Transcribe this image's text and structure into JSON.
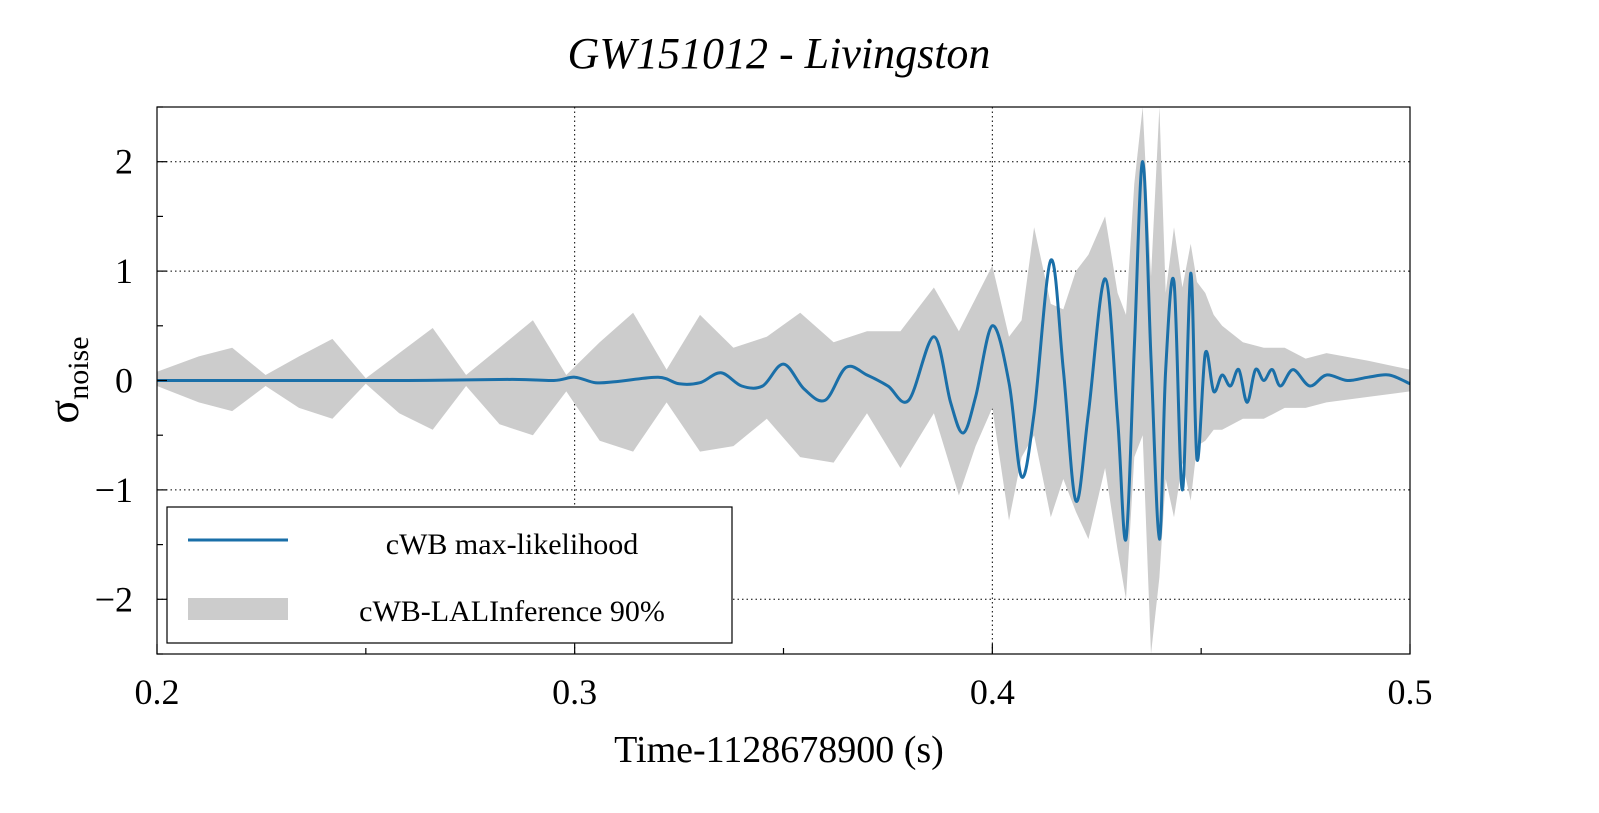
{
  "chart_data": {
    "type": "line",
    "title": "GW151012 - Livingston",
    "xlabel": "Time-1128678900 (s)",
    "ylabel_main": "σ",
    "ylabel_sub": "noise",
    "xlim": [
      0.2,
      0.5
    ],
    "ylim": [
      -2.5,
      2.5
    ],
    "xticks": [
      0.2,
      0.3,
      0.4,
      0.5
    ],
    "xtick_labels": [
      "0.2",
      "0.3",
      "0.4",
      "0.5"
    ],
    "yticks": [
      2,
      1,
      0,
      -1,
      -2
    ],
    "ytick_labels": [
      "2",
      "1",
      "0",
      "−1",
      "−2"
    ],
    "grid": true,
    "legend_position": "bottom-left",
    "series": [
      {
        "name": "cWB max-likelihood",
        "kind": "line",
        "color": "#1a6fa8",
        "x": [
          0.2,
          0.23,
          0.26,
          0.285,
          0.295,
          0.3,
          0.305,
          0.31,
          0.32,
          0.325,
          0.33,
          0.335,
          0.34,
          0.345,
          0.35,
          0.355,
          0.36,
          0.365,
          0.37,
          0.375,
          0.38,
          0.386,
          0.39,
          0.393,
          0.396,
          0.4,
          0.404,
          0.407,
          0.41,
          0.414,
          0.417,
          0.42,
          0.423,
          0.427,
          0.43,
          0.432,
          0.434,
          0.436,
          0.438,
          0.44,
          0.4415,
          0.4435,
          0.4455,
          0.4475,
          0.449,
          0.451,
          0.453,
          0.455,
          0.457,
          0.459,
          0.461,
          0.463,
          0.465,
          0.467,
          0.469,
          0.472,
          0.476,
          0.48,
          0.485,
          0.49,
          0.495,
          0.5
        ],
        "y": [
          0,
          0,
          0,
          0.01,
          0.0,
          0.03,
          -0.02,
          -0.01,
          0.03,
          -0.03,
          -0.02,
          0.07,
          -0.05,
          -0.05,
          0.15,
          -0.08,
          -0.18,
          0.12,
          0.05,
          -0.05,
          -0.18,
          0.4,
          -0.2,
          -0.48,
          -0.15,
          0.5,
          -0.02,
          -0.88,
          -0.3,
          1.1,
          0.1,
          -1.1,
          -0.3,
          0.93,
          -0.35,
          -1.45,
          0.3,
          2.0,
          0.2,
          -1.45,
          0.1,
          0.9,
          -1.0,
          0.98,
          -0.72,
          0.25,
          -0.1,
          0.05,
          -0.05,
          0.1,
          -0.2,
          0.1,
          0.0,
          0.1,
          -0.05,
          0.1,
          -0.05,
          0.05,
          0.0,
          0.03,
          0.05,
          -0.03
        ]
      },
      {
        "name": "cWB-LALInference 90%",
        "kind": "band",
        "color": "#cccccc",
        "x": [
          0.2,
          0.21,
          0.218,
          0.226,
          0.234,
          0.242,
          0.25,
          0.258,
          0.266,
          0.274,
          0.282,
          0.29,
          0.298,
          0.306,
          0.314,
          0.322,
          0.33,
          0.338,
          0.346,
          0.354,
          0.362,
          0.37,
          0.378,
          0.386,
          0.392,
          0.396,
          0.4,
          0.404,
          0.407,
          0.41,
          0.414,
          0.417,
          0.42,
          0.423,
          0.427,
          0.43,
          0.432,
          0.434,
          0.436,
          0.438,
          0.44,
          0.4415,
          0.4435,
          0.4455,
          0.4475,
          0.449,
          0.451,
          0.453,
          0.455,
          0.46,
          0.465,
          0.47,
          0.475,
          0.48,
          0.49,
          0.5
        ],
        "y_upper": [
          0.08,
          0.22,
          0.3,
          0.05,
          0.22,
          0.38,
          0.02,
          0.25,
          0.48,
          0.05,
          0.3,
          0.55,
          0.05,
          0.35,
          0.62,
          0.1,
          0.6,
          0.3,
          0.4,
          0.62,
          0.35,
          0.45,
          0.45,
          0.85,
          0.45,
          0.75,
          1.05,
          0.4,
          0.55,
          1.4,
          0.7,
          0.65,
          1.0,
          1.15,
          1.5,
          0.8,
          0.6,
          1.8,
          2.5,
          0.95,
          2.5,
          0.8,
          1.4,
          0.85,
          1.25,
          0.9,
          0.8,
          0.6,
          0.5,
          0.35,
          0.3,
          0.3,
          0.2,
          0.25,
          0.18,
          0.1
        ],
        "y_lower": [
          -0.05,
          -0.2,
          -0.28,
          -0.05,
          -0.25,
          -0.35,
          -0.03,
          -0.3,
          -0.45,
          -0.05,
          -0.4,
          -0.5,
          -0.1,
          -0.55,
          -0.65,
          -0.2,
          -0.65,
          -0.6,
          -0.35,
          -0.7,
          -0.75,
          -0.3,
          -0.8,
          -0.3,
          -1.05,
          -0.6,
          -0.25,
          -1.28,
          -0.7,
          -0.5,
          -1.25,
          -0.9,
          -1.2,
          -1.45,
          -0.8,
          -1.55,
          -2.0,
          -0.7,
          -0.5,
          -2.5,
          -1.8,
          -0.9,
          -1.25,
          -0.75,
          -1.1,
          -0.6,
          -0.55,
          -0.45,
          -0.45,
          -0.35,
          -0.35,
          -0.25,
          -0.25,
          -0.2,
          -0.15,
          -0.1
        ]
      }
    ]
  }
}
